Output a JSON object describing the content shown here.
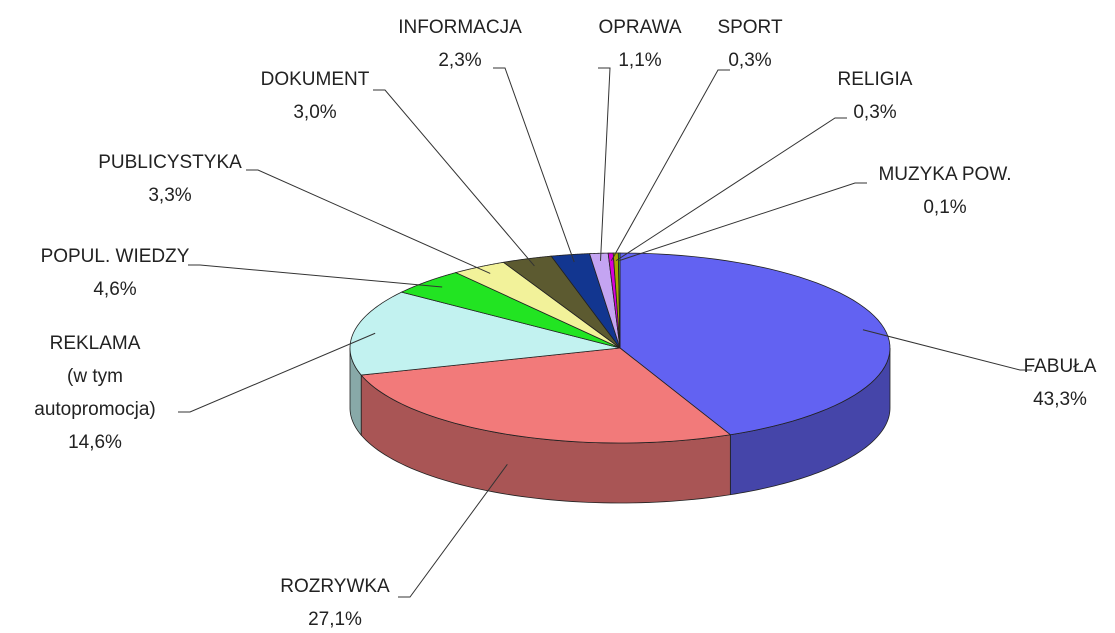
{
  "chart_data": {
    "type": "pie",
    "categories": [
      "FABUŁA",
      "ROZRYWKA",
      "REKLAMA\n(w tym\nautopromocja)",
      "POPUL. WIEDZY",
      "PUBLICYSTYKA",
      "DOKUMENT",
      "INFORMACJA",
      "OPRAWA",
      "SPORT",
      "RELIGIA",
      "MUZYKA POW."
    ],
    "values": [
      43.3,
      27.1,
      14.6,
      4.6,
      3.3,
      3.0,
      2.3,
      1.1,
      0.3,
      0.3,
      0.1
    ],
    "value_labels": [
      "43,3%",
      "27,1%",
      "14,6%",
      "4,6%",
      "3,3%",
      "3,0%",
      "2,3%",
      "1,1%",
      "0,3%",
      "0,3%",
      "0,1%"
    ],
    "colors": [
      "#6262f2",
      "#f27a7a",
      "#c2f2f0",
      "#22e422",
      "#f2f29a",
      "#5c5a30",
      "#123690",
      "#c4a4f2",
      "#d800d8",
      "#a8a800",
      "#44c444"
    ]
  }
}
